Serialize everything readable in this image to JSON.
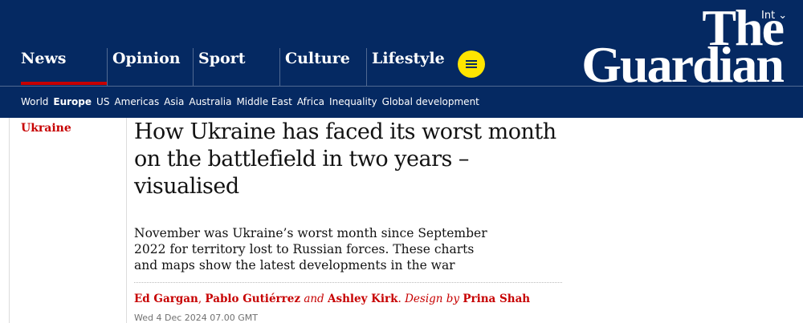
{
  "header": {
    "edition": "Int",
    "logo": [
      "The",
      "Guardian"
    ],
    "nav": [
      "News",
      "Opinion",
      "Sport",
      "Culture",
      "Lifestyle"
    ],
    "subnav": [
      "World",
      "Europe",
      "US",
      "Americas",
      "Asia",
      "Australia",
      "Middle East",
      "Africa",
      "Inequality",
      "Global development"
    ]
  },
  "article": {
    "section": "Ukraine",
    "headline": "How Ukraine has faced its worst month on the battlefield in two years – visualised",
    "standfirst": "November was Ukraine’s worst month since September 2022 for territory lost to Russian forces. These charts and maps show the latest developments in the war",
    "byline": {
      "authors": [
        "Ed Gargan",
        "Pablo Gutiérrez",
        "Ashley Kirk"
      ],
      "joiners": [
        ",",
        "and",
        "."
      ],
      "design_label": "Design by",
      "designer": "Prina Shah"
    },
    "date": "Wed 4 Dec 2024 07.00 GMT"
  }
}
